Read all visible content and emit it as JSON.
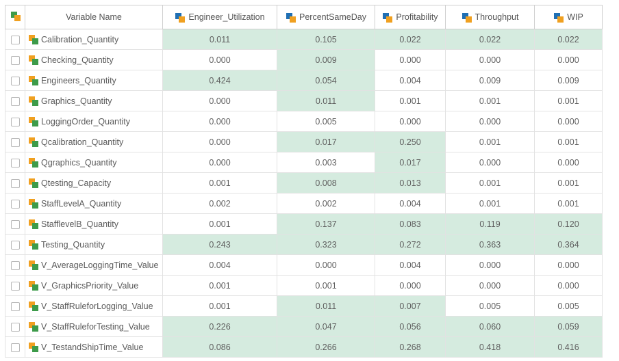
{
  "header": {
    "name_label": "Variable Name",
    "columns": [
      "Engineer_Utilization",
      "PercentSameDay",
      "Profitability",
      "Throughput",
      "WIP"
    ]
  },
  "colors": {
    "highlight": "#d5ebdf",
    "input_icon": "#3d9b4a",
    "output_icon": "#1f6fb4",
    "accent": "#f0a020"
  },
  "icons": {
    "corner": "select-all-icon",
    "input": "input-variable-icon",
    "output": "output-variable-icon"
  },
  "rows": [
    {
      "name": "Calibration_Quantity",
      "values": [
        "0.011",
        "0.105",
        "0.022",
        "0.022",
        "0.022"
      ],
      "hl": [
        1,
        1,
        1,
        1,
        1
      ]
    },
    {
      "name": "Checking_Quantity",
      "values": [
        "0.000",
        "0.009",
        "0.000",
        "0.000",
        "0.000"
      ],
      "hl": [
        0,
        1,
        0,
        0,
        0
      ]
    },
    {
      "name": "Engineers_Quantity",
      "values": [
        "0.424",
        "0.054",
        "0.004",
        "0.009",
        "0.009"
      ],
      "hl": [
        1,
        1,
        0,
        0,
        0
      ]
    },
    {
      "name": "Graphics_Quantity",
      "values": [
        "0.000",
        "0.011",
        "0.001",
        "0.001",
        "0.001"
      ],
      "hl": [
        0,
        1,
        0,
        0,
        0
      ]
    },
    {
      "name": "LoggingOrder_Quantity",
      "values": [
        "0.000",
        "0.005",
        "0.000",
        "0.000",
        "0.000"
      ],
      "hl": [
        0,
        0,
        0,
        0,
        0
      ]
    },
    {
      "name": "Qcalibration_Quantity",
      "values": [
        "0.000",
        "0.017",
        "0.250",
        "0.001",
        "0.001"
      ],
      "hl": [
        0,
        1,
        1,
        0,
        0
      ]
    },
    {
      "name": "Qgraphics_Quantity",
      "values": [
        "0.000",
        "0.003",
        "0.017",
        "0.000",
        "0.000"
      ],
      "hl": [
        0,
        0,
        1,
        0,
        0
      ]
    },
    {
      "name": "Qtesting_Capacity",
      "values": [
        "0.001",
        "0.008",
        "0.013",
        "0.001",
        "0.001"
      ],
      "hl": [
        0,
        1,
        1,
        0,
        0
      ]
    },
    {
      "name": "StaffLevelA_Quantity",
      "values": [
        "0.002",
        "0.002",
        "0.004",
        "0.001",
        "0.001"
      ],
      "hl": [
        0,
        0,
        0,
        0,
        0
      ]
    },
    {
      "name": "StafflevelB_Quantity",
      "values": [
        "0.001",
        "0.137",
        "0.083",
        "0.119",
        "0.120"
      ],
      "hl": [
        0,
        1,
        1,
        1,
        1
      ]
    },
    {
      "name": "Testing_Quantity",
      "values": [
        "0.243",
        "0.323",
        "0.272",
        "0.363",
        "0.364"
      ],
      "hl": [
        1,
        1,
        1,
        1,
        1
      ]
    },
    {
      "name": "V_AverageLoggingTime_Value",
      "values": [
        "0.004",
        "0.000",
        "0.004",
        "0.000",
        "0.000"
      ],
      "hl": [
        0,
        0,
        0,
        0,
        0
      ]
    },
    {
      "name": "V_GraphicsPriority_Value",
      "values": [
        "0.001",
        "0.001",
        "0.000",
        "0.000",
        "0.000"
      ],
      "hl": [
        0,
        0,
        0,
        0,
        0
      ]
    },
    {
      "name": "V_StaffRuleforLogging_Value",
      "values": [
        "0.001",
        "0.011",
        "0.007",
        "0.005",
        "0.005"
      ],
      "hl": [
        0,
        1,
        1,
        0,
        0
      ]
    },
    {
      "name": "V_StaffRuleforTesting_Value",
      "values": [
        "0.226",
        "0.047",
        "0.056",
        "0.060",
        "0.059"
      ],
      "hl": [
        1,
        1,
        1,
        1,
        1
      ]
    },
    {
      "name": "V_TestandShipTime_Value",
      "values": [
        "0.086",
        "0.266",
        "0.268",
        "0.418",
        "0.416"
      ],
      "hl": [
        1,
        1,
        1,
        1,
        1
      ]
    }
  ]
}
